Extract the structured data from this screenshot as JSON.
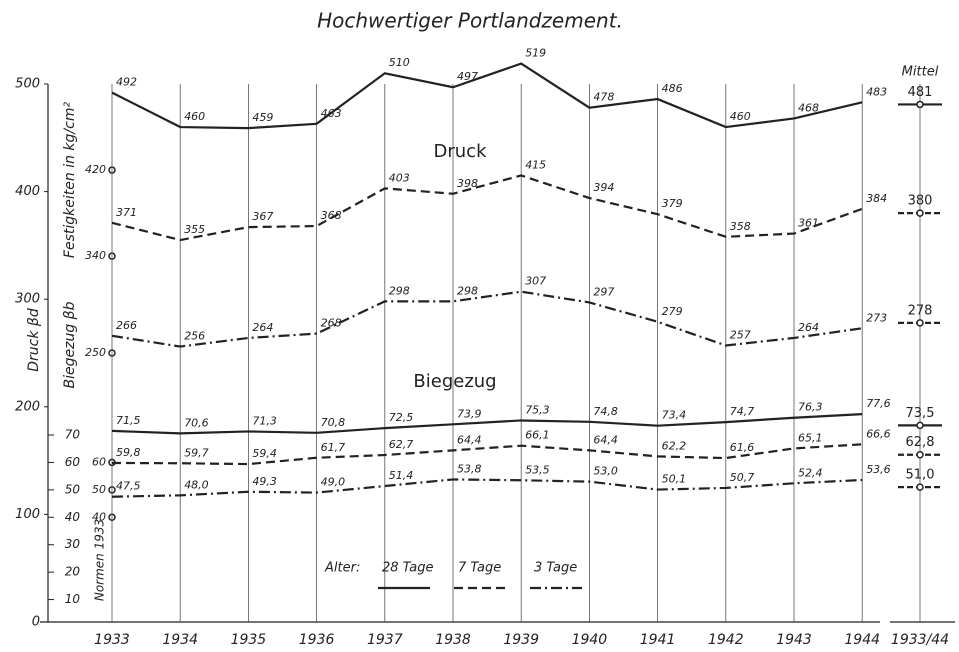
{
  "chart_data": {
    "type": "line",
    "title": "Hochwertiger Portlandzement.",
    "ylabel": "Festigkeiten in kg/cm²",
    "ylabel_druck": "Druck βd",
    "ylabel_biegezug": "Biegezug βb",
    "categories": [
      "1933",
      "1934",
      "1935",
      "1936",
      "1937",
      "1938",
      "1939",
      "1940",
      "1941",
      "1942",
      "1943",
      "1944"
    ],
    "mean_category": "1933/44",
    "mean_title": "Mittel",
    "color": "#222222",
    "ylim": [
      0,
      500
    ],
    "yticks": [
      0,
      100,
      200,
      300,
      400,
      500
    ],
    "y2lim": [
      0,
      70
    ],
    "y2ticks": [
      10,
      20,
      30,
      40,
      50,
      60,
      70
    ],
    "norms_label": "Normen 1933",
    "norms_y": [
      420,
      340,
      250
    ],
    "norms_y2": [
      60,
      50,
      40
    ],
    "legend_title": "Alter:",
    "legend": [
      {
        "name": "28 Tage",
        "dash": "solid"
      },
      {
        "name": "7 Tage",
        "dash": "dashed"
      },
      {
        "name": "3 Tage",
        "dash": "dashdot"
      }
    ],
    "groups": [
      {
        "name": "Druck",
        "axis": "y",
        "series": [
          {
            "values": [
              492,
              460,
              459,
              463,
              510,
              497,
              519,
              478,
              486,
              460,
              468,
              483
            ],
            "mean": 481
          },
          {
            "values": [
              371,
              355,
              367,
              368,
              403,
              398,
              415,
              394,
              379,
              358,
              361,
              384
            ],
            "mean": 380
          },
          {
            "values": [
              266,
              256,
              264,
              268,
              298,
              298,
              307,
              297,
              279,
              257,
              264,
              273
            ],
            "mean": 278
          }
        ]
      },
      {
        "name": "Biegezug",
        "axis": "y2",
        "series": [
          {
            "values": [
              71.5,
              70.6,
              71.3,
              70.8,
              72.5,
              73.9,
              75.3,
              74.8,
              73.4,
              74.7,
              76.3,
              77.6
            ],
            "value_labels": [
              "71,5",
              "70,6",
              "71,3",
              "70,8",
              "72,5",
              "73,9",
              "75,3",
              "74,8",
              "73,4",
              "74,7",
              "76,3",
              "77,6"
            ],
            "mean": 73.5,
            "mean_label": "73,5"
          },
          {
            "values": [
              59.8,
              59.7,
              59.4,
              61.7,
              62.7,
              64.4,
              66.1,
              64.4,
              62.2,
              61.6,
              65.1,
              66.6
            ],
            "value_labels": [
              "59,8",
              "59,7",
              "59,4",
              "61,7",
              "62,7",
              "64,4",
              "66,1",
              "64,4",
              "62,2",
              "61,6",
              "65,1",
              "66,6"
            ],
            "mean": 62.8,
            "mean_label": "62,8"
          },
          {
            "values": [
              47.5,
              48.0,
              49.3,
              49.0,
              51.4,
              53.8,
              53.5,
              53.0,
              50.1,
              50.7,
              52.4,
              53.6
            ],
            "value_labels": [
              "47,5",
              "48,0",
              "49,3",
              "49,0",
              "51,4",
              "53,8",
              "53,5",
              "53,0",
              "50,1",
              "50,7",
              "52,4",
              "53,6"
            ],
            "mean": 51.0,
            "mean_label": "51,0"
          }
        ]
      }
    ]
  }
}
